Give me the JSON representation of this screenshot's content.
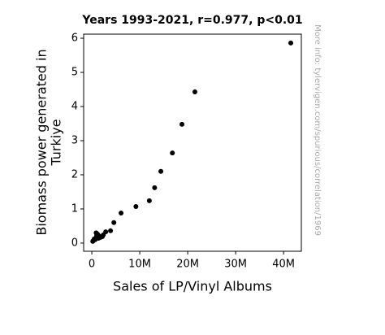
{
  "chart_data": {
    "type": "scatter",
    "title": "Years 1993-2021, r=0.977, p<0.01",
    "xlabel": "Sales of LP/Vinyl Albums",
    "ylabel": [
      "Biomass power generated in",
      "Turkiye"
    ],
    "annotation": "More info: tylervigen.com/spurious/correlation/1969",
    "color": "#000000",
    "x": [
      41500000,
      21500000,
      18800000,
      16800000,
      14400000,
      13100000,
      12000000,
      9200000,
      6100000,
      4600000,
      3900000,
      2900000,
      2400000,
      1900000,
      1200000,
      800000,
      300000,
      700000,
      1400000,
      1000000,
      1500000,
      500000,
      900000,
      200000,
      2200000
    ],
    "values": [
      5.86,
      4.43,
      3.48,
      2.64,
      2.1,
      1.62,
      1.24,
      1.07,
      0.88,
      0.6,
      0.36,
      0.33,
      0.24,
      0.17,
      0.26,
      0.14,
      0.07,
      0.1,
      0.14,
      0.21,
      0.21,
      0.12,
      0.3,
      0.05,
      0.19
    ],
    "xlim": [
      -1700000,
      43700000
    ],
    "ylim": [
      -0.24,
      6.12
    ],
    "xticks": [
      {
        "value": 0,
        "label": "0"
      },
      {
        "value": 10000000,
        "label": "10M"
      },
      {
        "value": 20000000,
        "label": "20M"
      },
      {
        "value": 30000000,
        "label": "30M"
      },
      {
        "value": 40000000,
        "label": "40M"
      }
    ],
    "yticks": [
      0,
      1,
      2,
      3,
      4,
      5,
      6
    ],
    "grid": false
  }
}
